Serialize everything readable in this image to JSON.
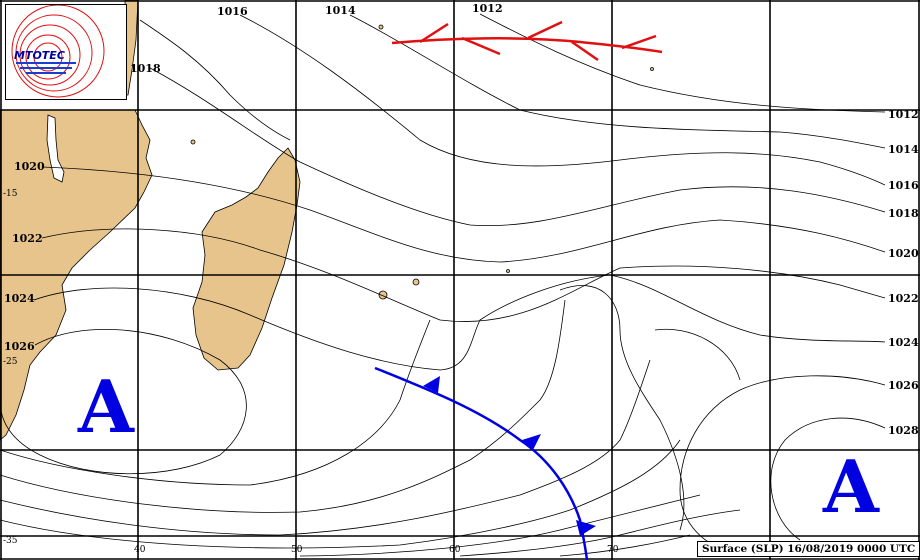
{
  "agency": "MTOTEC",
  "caption": "Surface (SLP) 16/08/2019 0000 UTC",
  "isobar_labels": {
    "top": [
      "1016",
      "1014",
      "1012"
    ],
    "left": [
      "1018",
      "1020",
      "1022",
      "1024",
      "1026"
    ],
    "right": [
      "1012",
      "1014",
      "1016",
      "1018",
      "1020",
      "1022",
      "1024",
      "1026",
      "1028"
    ]
  },
  "latitude_labels": [
    "-15",
    "-25",
    "-35"
  ],
  "longitude_labels": [
    "40",
    "50",
    "60",
    "70"
  ],
  "highs": [
    {
      "id": "west",
      "symbol": "A"
    },
    {
      "id": "east",
      "symbol": "A"
    }
  ],
  "colors": {
    "land": "#e6c48c",
    "cold_front": "#0000e0",
    "trough": "#e01010",
    "high": "#0000e0"
  }
}
